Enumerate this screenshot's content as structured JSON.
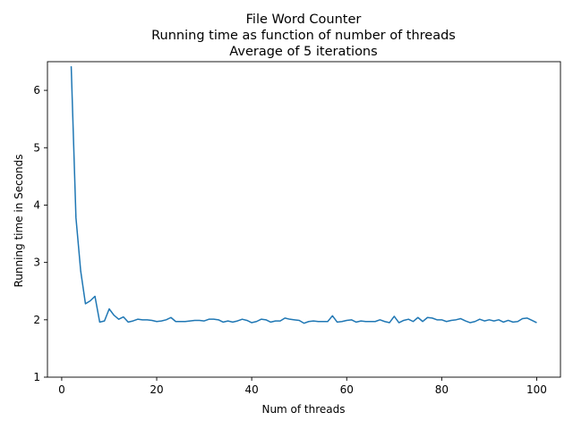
{
  "chart_data": {
    "type": "line",
    "title_lines": [
      "File Word Counter",
      "Running time as function of number of threads",
      "Average of 5 iterations"
    ],
    "xlabel": "Num of threads",
    "ylabel": "Running time in Seconds",
    "xlim": [
      -3,
      105
    ],
    "ylim": [
      1,
      6.5
    ],
    "xticks": [
      0,
      20,
      40,
      60,
      80,
      100
    ],
    "yticks": [
      1,
      2,
      3,
      4,
      5,
      6
    ],
    "grid": false,
    "series": [
      {
        "color": "#1f77b4",
        "x": [
          2,
          3,
          4,
          5,
          6,
          7,
          8,
          9,
          10,
          11,
          12,
          13,
          14,
          15,
          16,
          17,
          18,
          19,
          20,
          21,
          22,
          23,
          24,
          25,
          26,
          27,
          28,
          29,
          30,
          31,
          32,
          33,
          34,
          35,
          36,
          37,
          38,
          39,
          40,
          41,
          42,
          43,
          44,
          45,
          46,
          47,
          48,
          49,
          50,
          51,
          52,
          53,
          54,
          55,
          56,
          57,
          58,
          59,
          60,
          61,
          62,
          63,
          64,
          65,
          66,
          67,
          68,
          69,
          70,
          71,
          72,
          73,
          74,
          75,
          76,
          77,
          78,
          79,
          80,
          81,
          82,
          83,
          84,
          85,
          86,
          87,
          88,
          89,
          90,
          91,
          92,
          93,
          94,
          95,
          96,
          97,
          98,
          99,
          100
        ],
        "values": [
          6.42,
          3.78,
          2.85,
          2.28,
          2.33,
          2.41,
          1.96,
          1.98,
          2.19,
          2.08,
          2.01,
          2.05,
          1.96,
          1.98,
          2.01,
          2.0,
          2.0,
          1.99,
          1.97,
          1.98,
          2.0,
          2.04,
          1.97,
          1.97,
          1.97,
          1.98,
          1.99,
          1.99,
          1.98,
          2.01,
          2.01,
          2.0,
          1.96,
          1.98,
          1.96,
          1.98,
          2.01,
          1.99,
          1.95,
          1.97,
          2.01,
          2.0,
          1.96,
          1.98,
          1.98,
          2.03,
          2.01,
          2.0,
          1.99,
          1.94,
          1.97,
          1.98,
          1.97,
          1.97,
          1.97,
          2.07,
          1.96,
          1.97,
          1.99,
          2.0,
          1.96,
          1.98,
          1.97,
          1.97,
          1.97,
          2.0,
          1.97,
          1.95,
          2.06,
          1.95,
          1.99,
          2.01,
          1.97,
          2.04,
          1.97,
          2.04,
          2.03,
          2.0,
          2.0,
          1.97,
          1.99,
          2.0,
          2.02,
          1.98,
          1.95,
          1.97,
          2.01,
          1.98,
          2.0,
          1.98,
          2.0,
          1.96,
          1.99,
          1.96,
          1.97,
          2.02,
          2.03,
          1.99,
          1.95
        ]
      }
    ]
  }
}
